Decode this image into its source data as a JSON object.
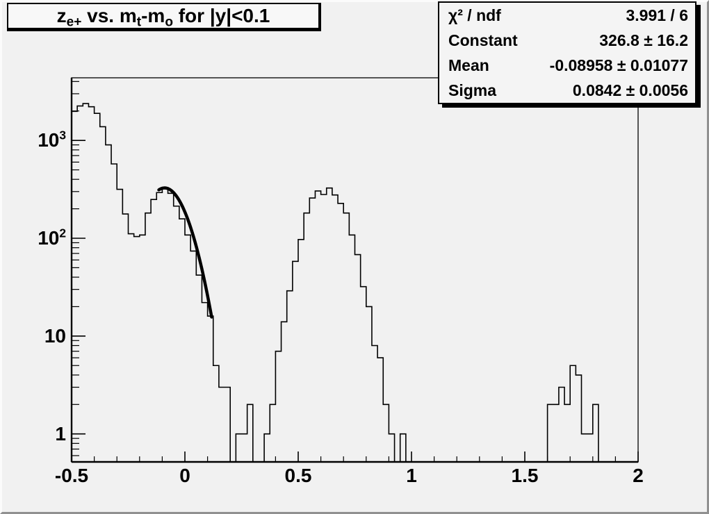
{
  "canvas": {
    "background": "#f1f1f1",
    "bevel_light": "#fbfbfb",
    "bevel_dark": "#909090",
    "line_color": "#000000"
  },
  "title_box": {
    "plain_text": "z_e+ vs. m_t-m_o for |y|<0.1",
    "segments": [
      {
        "text": "z"
      },
      {
        "sub": "e+"
      },
      {
        "text": " vs. m"
      },
      {
        "sub": "t"
      },
      {
        "text": "-m"
      },
      {
        "sub": "o"
      },
      {
        "text": " for |y|<0.1"
      }
    ]
  },
  "stats_box": {
    "rows": [
      {
        "label": "χ² / ndf",
        "value": "3.991 / 6"
      },
      {
        "label": "Constant",
        "value": "326.8 ± 16.2"
      },
      {
        "label": "Mean",
        "value": "-0.08958 ± 0.01077"
      },
      {
        "label": "Sigma",
        "value": "0.0842 ± 0.0056"
      }
    ]
  },
  "chart_data": {
    "type": "bar",
    "subtype": "step-histogram-log-y",
    "title": "z_e+ vs. m_t-m_o for |y|<0.1",
    "xlabel": "",
    "ylabel": "",
    "grid": false,
    "legend": false,
    "x_axis": {
      "min": -0.5,
      "max": 2.0,
      "major_ticks": [
        -0.5,
        0,
        0.5,
        1,
        1.5,
        2
      ],
      "tick_labels": [
        "-0.5",
        "0",
        "0.5",
        "1",
        "1.5",
        "2"
      ],
      "minor_tick_step": 0.1
    },
    "y_axis": {
      "scale": "log",
      "min": 0.5175,
      "max": 4365,
      "major_ticks": [
        1,
        10,
        100,
        1000
      ],
      "tick_labels": [
        {
          "value": 1,
          "base": "1",
          "exp": ""
        },
        {
          "value": 10,
          "base": "10",
          "exp": ""
        },
        {
          "value": 100,
          "base": "10",
          "exp": "2"
        },
        {
          "value": 1000,
          "base": "10",
          "exp": "3"
        }
      ]
    },
    "bins": {
      "x_start": -0.5,
      "bin_width": 0.025,
      "counts": [
        1980,
        2250,
        2380,
        2210,
        1890,
        1380,
        900,
        575,
        316,
        177,
        111,
        104,
        108,
        181,
        249,
        293,
        330,
        288,
        213,
        158,
        108,
        74,
        42,
        22,
        16,
        5,
        3,
        3,
        0,
        1,
        1,
        2,
        0,
        0,
        1,
        2,
        7,
        14,
        29,
        58,
        97,
        181,
        258,
        304,
        280,
        326,
        277,
        227,
        181,
        108,
        68,
        32,
        20,
        8,
        6,
        2,
        1,
        0,
        1,
        0,
        0,
        0,
        0,
        0,
        0,
        0,
        0,
        0,
        0,
        0,
        0,
        0,
        0,
        0,
        0,
        0,
        0,
        0,
        0,
        0,
        0,
        0,
        0,
        0,
        2,
        2,
        3,
        2,
        5,
        4,
        1,
        1,
        2,
        0,
        0,
        0,
        0,
        0,
        0,
        0
      ]
    },
    "fit": {
      "model": "gaussian",
      "chi2": 3.991,
      "ndf": 6,
      "constant": 326.8,
      "mean": -0.08958,
      "sigma": 0.0842,
      "draw_range": [
        -0.115,
        0.118
      ],
      "line_width": 4.5
    }
  }
}
